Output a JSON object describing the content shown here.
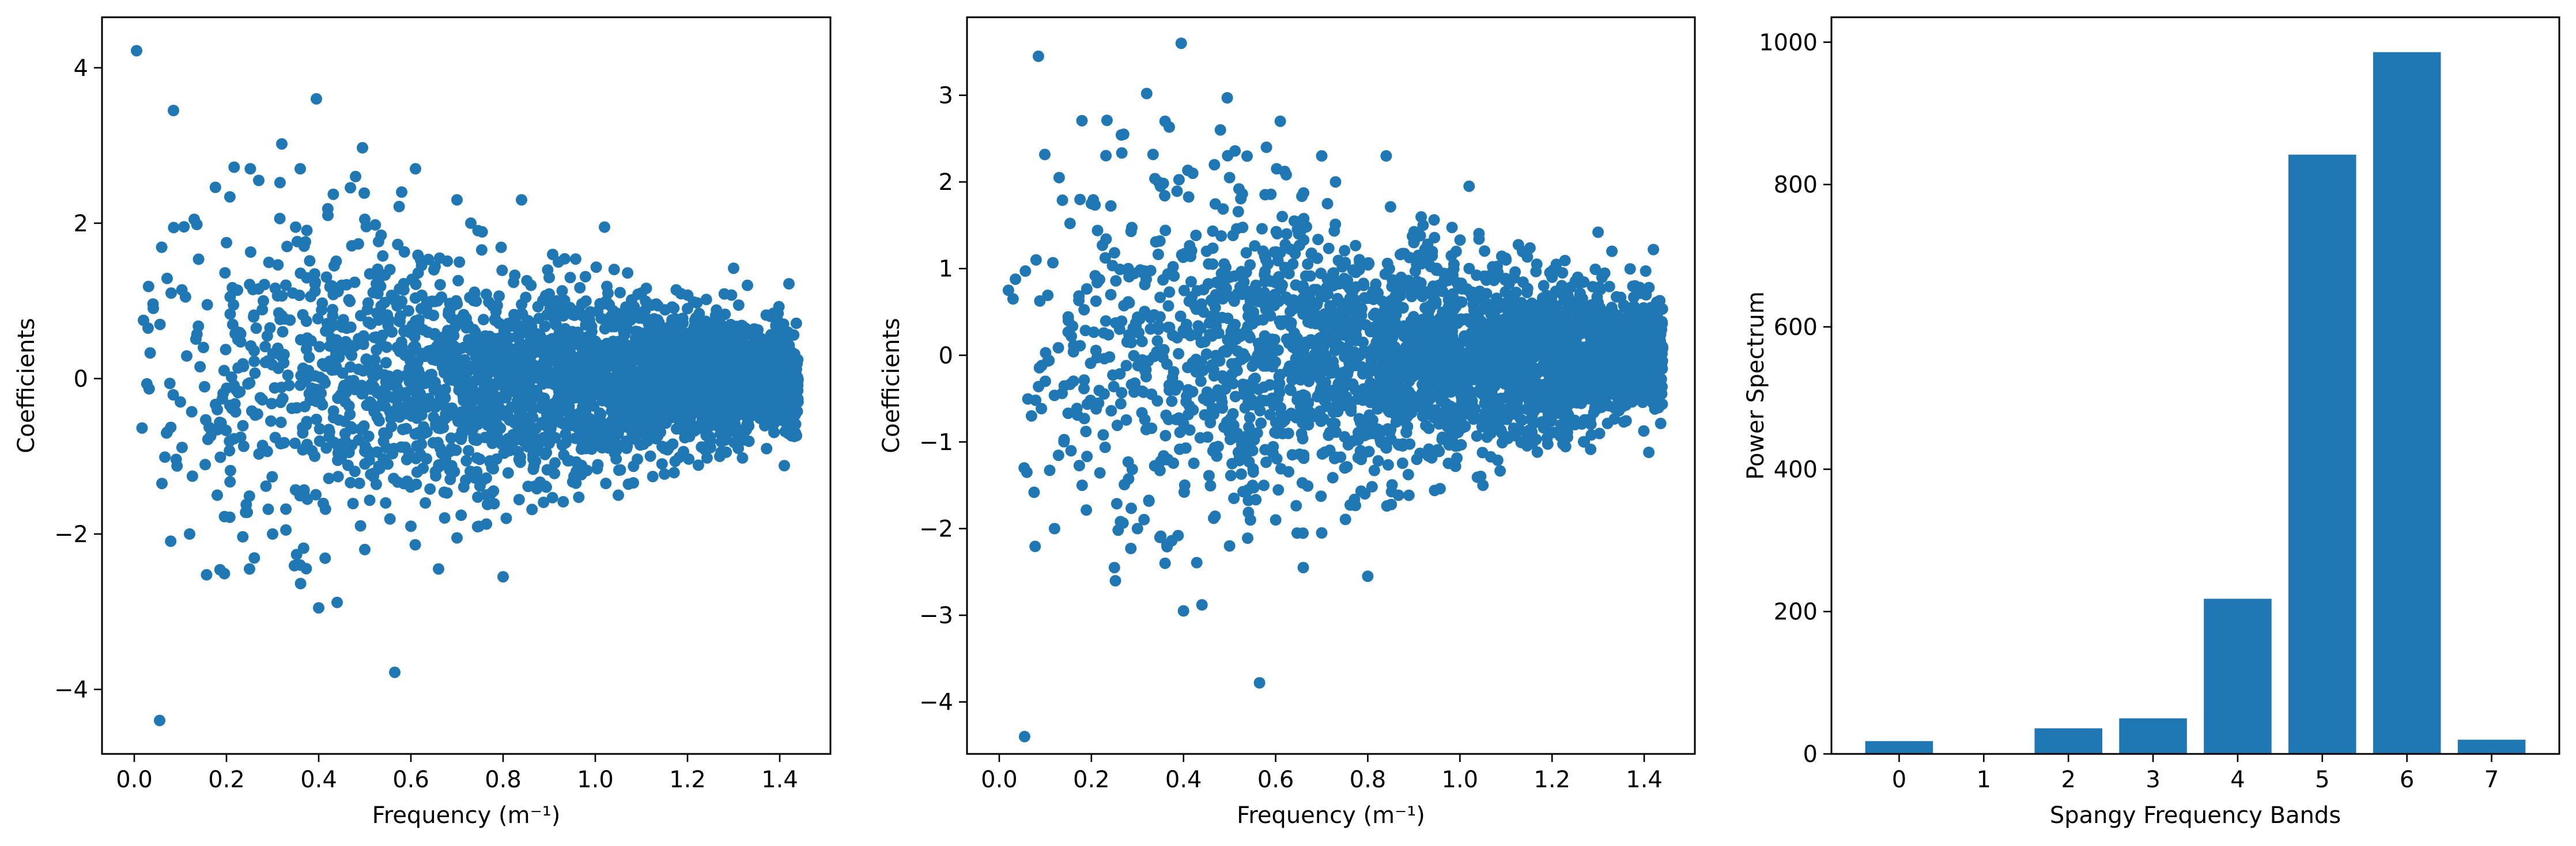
{
  "colors": {
    "marker": "#1f77b4",
    "bar": "#1f77b4",
    "axes": "#000000",
    "background": "#ffffff"
  },
  "chart_data": [
    {
      "type": "scatter",
      "xlabel": "Frequency (m⁻¹)",
      "ylabel": "Coefficients",
      "xlim": [
        -0.07,
        1.51
      ],
      "ylim": [
        -4.83,
        4.65
      ],
      "xticks": [
        0.0,
        0.2,
        0.4,
        0.6,
        0.8,
        1.0,
        1.2,
        1.4
      ],
      "xtick_labels": [
        "0.0",
        "0.2",
        "0.4",
        "0.6",
        "0.8",
        "1.0",
        "1.2",
        "1.4"
      ],
      "yticks": [
        -4,
        -2,
        0,
        2,
        4
      ],
      "ytick_labels": [
        "−4",
        "−2",
        "0",
        "2",
        "4"
      ],
      "grid": false,
      "points": [
        [
          0.005,
          4.22
        ],
        [
          0.055,
          -4.4
        ],
        [
          0.085,
          3.45
        ],
        [
          0.32,
          3.02
        ],
        [
          0.395,
          3.6
        ],
        [
          0.495,
          2.97
        ],
        [
          0.565,
          -3.78
        ],
        [
          0.4,
          -2.95
        ],
        [
          0.44,
          -2.88
        ],
        [
          0.27,
          2.55
        ],
        [
          0.36,
          2.7
        ],
        [
          0.61,
          2.7
        ],
        [
          0.13,
          2.05
        ],
        [
          0.2,
          1.75
        ],
        [
          0.02,
          0.75
        ],
        [
          0.03,
          0.65
        ],
        [
          0.07,
          -0.7
        ],
        [
          0.06,
          -1.35
        ],
        [
          0.12,
          -2.0
        ],
        [
          0.25,
          -2.45
        ],
        [
          0.66,
          -2.45
        ],
        [
          0.8,
          -2.55
        ],
        [
          0.3,
          -2.0
        ],
        [
          0.18,
          -1.5
        ],
        [
          1.02,
          1.95
        ],
        [
          1.05,
          -1.5
        ],
        [
          1.42,
          1.22
        ],
        [
          1.41,
          -1.12
        ],
        [
          1.3,
          1.42
        ],
        [
          1.27,
          -1.0
        ],
        [
          1.33,
          1.2
        ],
        [
          0.7,
          2.3
        ],
        [
          0.84,
          2.3
        ],
        [
          0.92,
          1.5
        ],
        [
          0.35,
          1.95
        ],
        [
          0.42,
          2.1
        ],
        [
          0.5,
          2.05
        ],
        [
          0.15,
          0.4
        ],
        [
          0.1,
          -0.3
        ],
        [
          0.28,
          1.0
        ],
        [
          0.45,
          1.2
        ],
        [
          0.55,
          -1.1
        ],
        [
          0.65,
          1.4
        ],
        [
          0.75,
          -1.3
        ],
        [
          0.9,
          1.3
        ],
        [
          0.98,
          -0.9
        ],
        [
          1.1,
          1.1
        ],
        [
          1.15,
          -0.9
        ],
        [
          1.2,
          0.9
        ],
        [
          1.25,
          -0.8
        ],
        [
          1.38,
          0.8
        ],
        [
          1.43,
          -0.6
        ],
        [
          0.08,
          1.1
        ],
        [
          0.5,
          -2.2
        ],
        [
          0.6,
          -1.9
        ],
        [
          0.7,
          -2.05
        ],
        [
          0.36,
          -2.4
        ],
        [
          0.48,
          2.6
        ],
        [
          0.58,
          2.4
        ],
        [
          0.73,
          2.0
        ]
      ],
      "point_cloud": {
        "count": 3000,
        "x_range": [
          0.0,
          1.44
        ],
        "y_spread_by_x": [
          [
            0.0,
            1.0
          ],
          [
            0.2,
            1.1
          ],
          [
            0.4,
            1.05
          ],
          [
            0.6,
            0.85
          ],
          [
            0.8,
            0.7
          ],
          [
            1.0,
            0.55
          ],
          [
            1.2,
            0.42
          ],
          [
            1.44,
            0.32
          ]
        ]
      }
    },
    {
      "type": "scatter",
      "xlabel": "Frequency (m⁻¹)",
      "ylabel": "Coefficients",
      "xlim": [
        -0.07,
        1.51
      ],
      "ylim": [
        -4.6,
        3.9
      ],
      "xticks": [
        0.0,
        0.2,
        0.4,
        0.6,
        0.8,
        1.0,
        1.2,
        1.4
      ],
      "xtick_labels": [
        "0.0",
        "0.2",
        "0.4",
        "0.6",
        "0.8",
        "1.0",
        "1.2",
        "1.4"
      ],
      "yticks": [
        -4,
        -3,
        -2,
        -1,
        0,
        1,
        2,
        3
      ],
      "ytick_labels": [
        "−4",
        "−3",
        "−2",
        "−1",
        "0",
        "1",
        "2",
        "3"
      ],
      "grid": false,
      "points": [
        [
          0.055,
          -4.4
        ],
        [
          0.085,
          3.45
        ],
        [
          0.32,
          3.02
        ],
        [
          0.395,
          3.6
        ],
        [
          0.495,
          2.97
        ],
        [
          0.565,
          -3.78
        ],
        [
          0.4,
          -2.95
        ],
        [
          0.44,
          -2.88
        ],
        [
          0.27,
          2.55
        ],
        [
          0.36,
          2.7
        ],
        [
          0.61,
          2.7
        ],
        [
          0.13,
          2.05
        ],
        [
          0.2,
          1.75
        ],
        [
          0.02,
          0.75
        ],
        [
          0.03,
          0.65
        ],
        [
          0.07,
          -0.7
        ],
        [
          0.06,
          -1.35
        ],
        [
          0.12,
          -2.0
        ],
        [
          0.25,
          -2.45
        ],
        [
          0.66,
          -2.45
        ],
        [
          0.8,
          -2.55
        ],
        [
          0.3,
          -2.0
        ],
        [
          0.18,
          -1.5
        ],
        [
          1.02,
          1.95
        ],
        [
          1.05,
          -1.5
        ],
        [
          1.42,
          1.22
        ],
        [
          1.41,
          -1.12
        ],
        [
          1.3,
          1.42
        ],
        [
          1.27,
          -1.0
        ],
        [
          1.33,
          1.2
        ],
        [
          0.7,
          2.3
        ],
        [
          0.84,
          2.3
        ],
        [
          0.92,
          1.5
        ],
        [
          0.35,
          1.95
        ],
        [
          0.42,
          2.1
        ],
        [
          0.5,
          2.05
        ],
        [
          0.15,
          0.4
        ],
        [
          0.1,
          -0.3
        ],
        [
          0.28,
          1.0
        ],
        [
          0.45,
          1.2
        ],
        [
          0.55,
          -1.1
        ],
        [
          0.65,
          1.4
        ],
        [
          0.75,
          -1.3
        ],
        [
          0.9,
          1.3
        ],
        [
          0.98,
          -0.9
        ],
        [
          1.1,
          1.1
        ],
        [
          1.15,
          -0.9
        ],
        [
          1.2,
          0.9
        ],
        [
          1.25,
          -0.8
        ],
        [
          1.38,
          0.8
        ],
        [
          1.43,
          -0.6
        ],
        [
          0.08,
          1.1
        ],
        [
          0.5,
          -2.2
        ],
        [
          0.6,
          -1.9
        ],
        [
          0.7,
          -2.05
        ],
        [
          0.36,
          -2.4
        ],
        [
          0.48,
          2.6
        ],
        [
          0.58,
          2.4
        ],
        [
          0.73,
          2.0
        ]
      ],
      "point_cloud": {
        "count": 3000,
        "x_range": [
          0.0,
          1.44
        ],
        "y_spread_by_x": [
          [
            0.0,
            1.0
          ],
          [
            0.2,
            1.1
          ],
          [
            0.4,
            1.05
          ],
          [
            0.6,
            0.85
          ],
          [
            0.8,
            0.7
          ],
          [
            1.0,
            0.55
          ],
          [
            1.2,
            0.42
          ],
          [
            1.44,
            0.32
          ]
        ]
      }
    },
    {
      "type": "bar",
      "xlabel": "Spangy Frequency Bands",
      "ylabel": "Power Spectrum",
      "categories": [
        "0",
        "1",
        "2",
        "3",
        "4",
        "5",
        "6",
        "7"
      ],
      "values": [
        18,
        0,
        36,
        50,
        218,
        842,
        986,
        20
      ],
      "xlim": [
        -0.8,
        7.8
      ],
      "ylim": [
        0,
        1035
      ],
      "yticks": [
        0,
        200,
        400,
        600,
        800,
        1000
      ],
      "ytick_labels": [
        "0",
        "200",
        "400",
        "600",
        "800",
        "1000"
      ],
      "bar_width": 0.8,
      "grid": false
    }
  ]
}
